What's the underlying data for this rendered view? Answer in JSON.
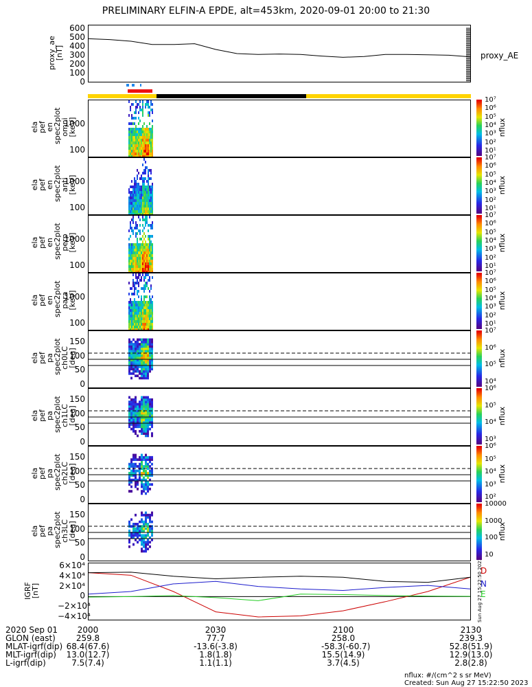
{
  "title": "PRELIMINARY ELFIN-A EPDE, alt=453km, 2020-09-01 20:00 to 21:30",
  "ae": {
    "ylabel": "proxy_ae\n[nT]",
    "legend": "proxy_AE",
    "ticks": [
      "600",
      "500",
      "400",
      "300",
      "200",
      "100",
      "0"
    ]
  },
  "spec_panels": [
    {
      "ylabel": "ela\npef\nen\nspec2plot\nomni\n[keV]",
      "ticks": [
        "1000",
        "100"
      ]
    },
    {
      "ylabel": "ela\npef\nen\nspec2plot\nanti\n[keV]",
      "ticks": [
        "1000",
        "100"
      ]
    },
    {
      "ylabel": "ela\npef\nen\nspec2plot\nperp\n[keV]",
      "ticks": [
        "1000",
        "100"
      ]
    },
    {
      "ylabel": "ela\npef\nen\nspec2plot\npara\n[keV]",
      "ticks": [
        "1000",
        "100"
      ]
    }
  ],
  "pa_panels": [
    {
      "ylabel": "ela\npef\npa\nspec2plot\nch0LC\n[deg]",
      "ticks": [
        "150",
        "100",
        "50",
        "0"
      ]
    },
    {
      "ylabel": "ela\npef\npa\nspec2plot\nch1LC\n[deg]",
      "ticks": [
        "150",
        "100",
        "50",
        "0"
      ]
    },
    {
      "ylabel": "ela\npef\npa\nspec2plot\nch2LC\n[deg]",
      "ticks": [
        "150",
        "100",
        "50",
        "0"
      ]
    },
    {
      "ylabel": "ela\npef\npa\nspec2plot\nch3LC\n[deg]",
      "ticks": [
        "150",
        "100",
        "50",
        "0"
      ]
    }
  ],
  "colorbars": [
    {
      "ticks": [
        "10⁷",
        "10⁶",
        "10⁵",
        "10⁴",
        "10³",
        "10²",
        "10¹"
      ],
      "unit": "nflux"
    },
    {
      "ticks": [
        "10⁷",
        "10⁶",
        "10⁵",
        "10⁴",
        "10³",
        "10²",
        "10¹"
      ],
      "unit": "nflux"
    },
    {
      "ticks": [
        "10⁷",
        "10⁶",
        "10⁵",
        "10⁴",
        "10³",
        "10²",
        "10¹"
      ],
      "unit": "nflux"
    },
    {
      "ticks": [
        "10⁷",
        "10⁶",
        "10⁵",
        "10⁴",
        "10³",
        "10²",
        "10¹"
      ],
      "unit": "nflux"
    },
    {
      "ticks": [
        "10⁷",
        "10⁶",
        "10⁵",
        "10⁴"
      ],
      "unit": "nflux"
    },
    {
      "ticks": [
        "10⁶",
        "10⁵",
        "10⁴",
        "10³"
      ],
      "unit": "nflux"
    },
    {
      "ticks": [
        "10⁶",
        "10⁵",
        "10⁴",
        "10³",
        "10²"
      ],
      "unit": "nflux"
    },
    {
      "ticks": [
        "10000",
        "1000",
        "100",
        "10"
      ],
      "unit": "nflux"
    }
  ],
  "igrf": {
    "ylabel": "IGRF\n[nT]",
    "ticks": [
      "6×10⁴",
      "4×10⁴",
      "2×10⁴",
      "0",
      "−2×10⁴",
      "−4×10⁴"
    ],
    "labels": [
      "D",
      "N",
      "E"
    ],
    "side_text": "Sun Aug 27 15:22:50 2023"
  },
  "footer": {
    "rows": [
      {
        "label": "2020 Sep 01",
        "values": [
          "2000",
          "2030",
          "2100",
          "2130"
        ]
      },
      {
        "label": "GLON (east)",
        "values": [
          "259.8",
          "77.7",
          "258.0",
          "239.3"
        ]
      },
      {
        "label": "MLAT-igrf(dip)",
        "values": [
          "68.4(67.6)",
          "-13.6(-3.8)",
          "-58.3(-60.7)",
          "52.8(51.9)"
        ]
      },
      {
        "label": "MLT-igrf(dip)",
        "values": [
          "13.0(12.7)",
          "1.8(1.8)",
          "15.5(14.9)",
          "12.9(13.0)"
        ]
      },
      {
        "label": "L-igrf(dip)",
        "values": [
          "7.5(7.4)",
          "1.1(1.1)",
          "3.7(4.5)",
          "2.8(2.8)"
        ]
      }
    ],
    "unit_note": "nflux: #/(cm^2 s sr MeV)",
    "created": "Created: Sun Aug 27 15:22:50 2023"
  },
  "colors": {
    "black": "#000000",
    "blue": "#1a1acc",
    "red": "#cc0000",
    "green": "#22cc22",
    "yellow": "#ffd400",
    "bar_red": "#ee1111",
    "bar_blue": "#2288ee"
  },
  "chart_data": [
    {
      "type": "line",
      "title": "PRELIMINARY ELFIN-A EPDE, alt=453km, 2020-09-01 20:00 to 21:30",
      "ylabel": "proxy_ae [nT]",
      "ylim": [
        0,
        600
      ],
      "series": [
        {
          "name": "proxy_AE",
          "x": [
            0,
            5,
            10,
            15,
            20,
            25,
            30,
            35,
            40,
            45,
            50,
            55,
            60,
            65,
            70,
            75,
            80,
            85,
            90
          ],
          "values": [
            480,
            470,
            450,
            410,
            410,
            420,
            350,
            300,
            290,
            295,
            290,
            270,
            255,
            265,
            290,
            290,
            285,
            280,
            260
          ]
        }
      ]
    },
    {
      "type": "line",
      "ylabel": "IGRF [nT]",
      "ylim": [
        -40000,
        60000
      ],
      "series": [
        {
          "name": "D",
          "x": [
            0,
            10,
            20,
            30,
            40,
            50,
            60,
            70,
            80,
            90
          ],
          "values": [
            47000,
            42000,
            10000,
            -30000,
            -40000,
            -38000,
            -28000,
            -10000,
            10000,
            38000
          ]
        },
        {
          "name": "N",
          "x": [
            0,
            10,
            20,
            30,
            40,
            50,
            60,
            70,
            80,
            90
          ],
          "values": [
            5000,
            10000,
            25000,
            30000,
            20000,
            15000,
            12000,
            18000,
            22000,
            15000
          ]
        },
        {
          "name": "E",
          "x": [
            0,
            10,
            20,
            30,
            40,
            50,
            60,
            70,
            80,
            90
          ],
          "values": [
            -1000,
            0,
            2000,
            -2000,
            -8000,
            5000,
            4000,
            2000,
            1000,
            500
          ]
        },
        {
          "values": [
            47000,
            48000,
            40000,
            35000,
            38000,
            40000,
            38000,
            30000,
            28000,
            38000
          ],
          "x": [
            0,
            10,
            20,
            30,
            40,
            50,
            60,
            70,
            80,
            90
          ]
        }
      ]
    }
  ]
}
